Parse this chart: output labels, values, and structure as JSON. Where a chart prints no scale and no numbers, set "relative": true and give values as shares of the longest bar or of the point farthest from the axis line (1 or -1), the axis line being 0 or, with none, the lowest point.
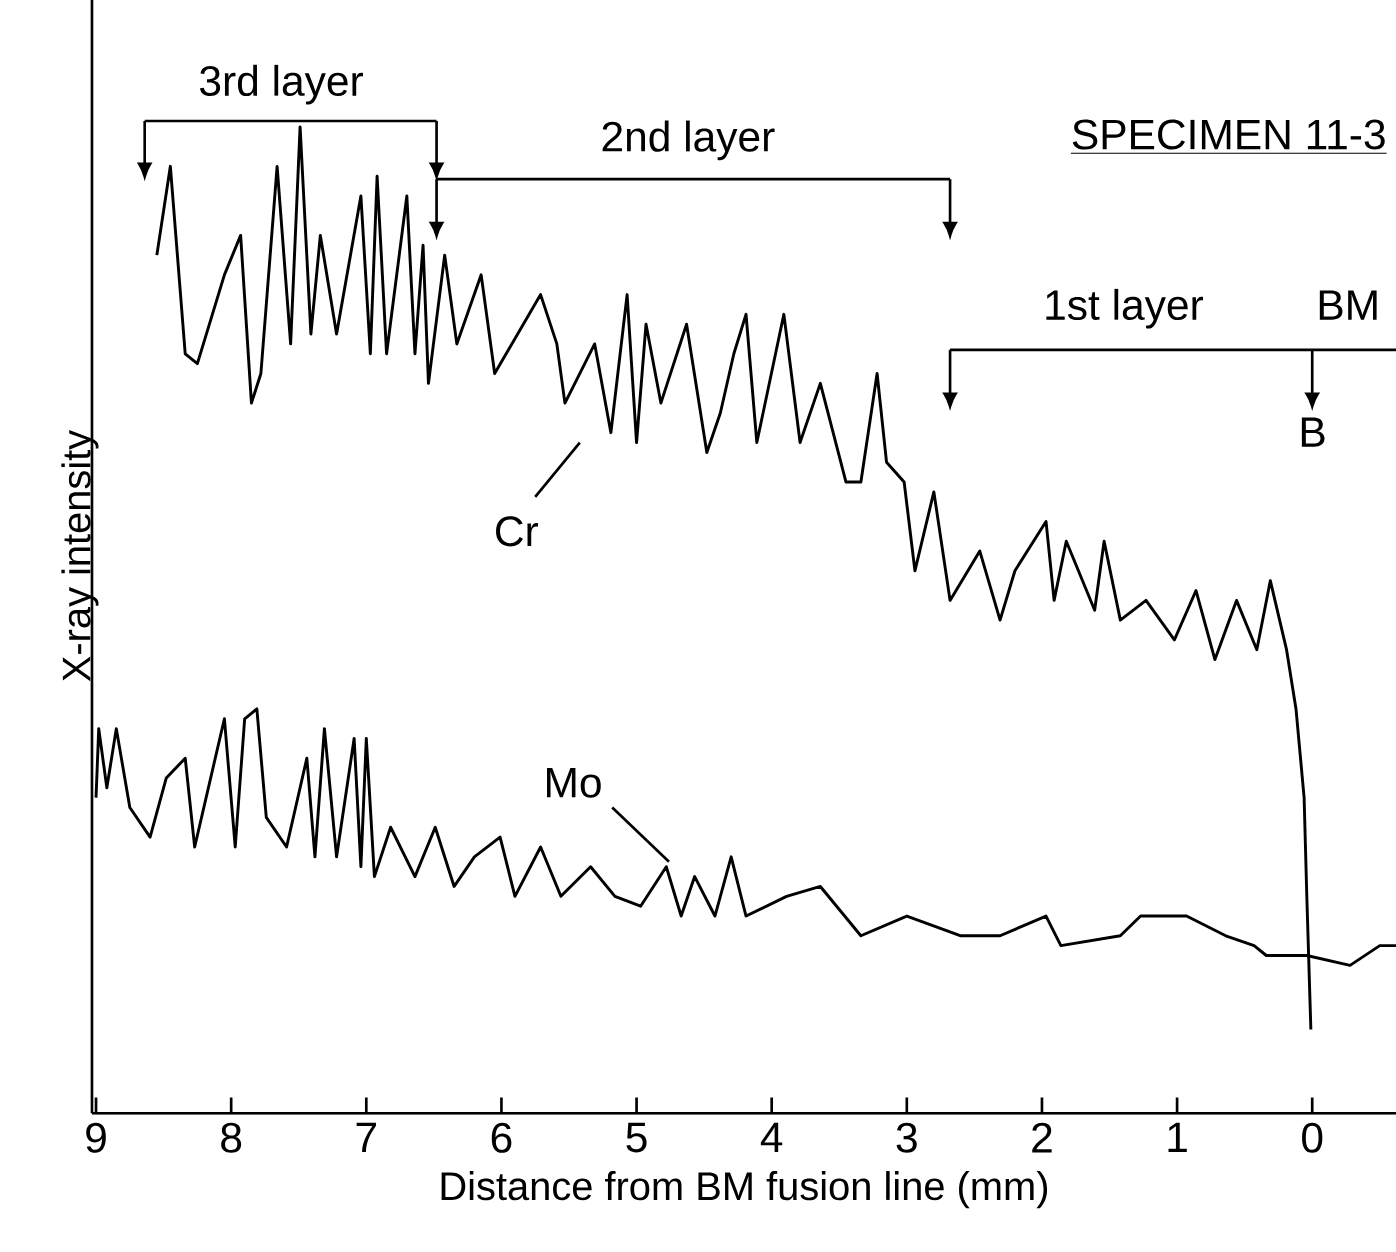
{
  "chart_data": {
    "type": "line",
    "relative": true,
    "xlabel": "Distance from BM fusion line (mm)",
    "ylabel": "X-ray intensity",
    "xlim": [
      9.03,
      -0.62
    ],
    "xticks": [
      9,
      8,
      7,
      6,
      5,
      4,
      3,
      2,
      1,
      0
    ],
    "grid": false,
    "marker": "none",
    "line_style": "solid",
    "series": [
      {
        "name": "Cr",
        "color": "#000000",
        "x": [
          8.55,
          8.45,
          8.34,
          8.25,
          8.05,
          7.93,
          7.85,
          7.78,
          7.66,
          7.56,
          7.49,
          7.41,
          7.34,
          7.22,
          7.04,
          6.97,
          6.92,
          6.85,
          6.7,
          6.64,
          6.58,
          6.54,
          6.42,
          6.33,
          6.15,
          6.05,
          5.71,
          5.59,
          5.53,
          5.31,
          5.19,
          5.07,
          5.0,
          4.93,
          4.82,
          4.63,
          4.48,
          4.38,
          4.28,
          4.19,
          4.11,
          3.91,
          3.79,
          3.64,
          3.45,
          3.34,
          3.22,
          3.15,
          3.02,
          2.94,
          2.8,
          2.68,
          2.46,
          2.31,
          2.2,
          1.97,
          1.91,
          1.82,
          1.61,
          1.54,
          1.42,
          1.23,
          1.02,
          0.86,
          0.72,
          0.56,
          0.41,
          0.31,
          0.19,
          0.12,
          0.06,
          0.04,
          0.01
        ],
        "values": [
          0.87,
          0.96,
          0.77,
          0.76,
          0.85,
          0.89,
          0.72,
          0.75,
          0.96,
          0.78,
          1.0,
          0.79,
          0.89,
          0.79,
          0.93,
          0.77,
          0.95,
          0.77,
          0.93,
          0.77,
          0.88,
          0.74,
          0.87,
          0.78,
          0.85,
          0.75,
          0.83,
          0.78,
          0.72,
          0.78,
          0.69,
          0.83,
          0.68,
          0.8,
          0.72,
          0.8,
          0.67,
          0.71,
          0.77,
          0.81,
          0.68,
          0.81,
          0.68,
          0.74,
          0.64,
          0.64,
          0.75,
          0.66,
          0.64,
          0.55,
          0.63,
          0.52,
          0.57,
          0.5,
          0.55,
          0.6,
          0.52,
          0.58,
          0.51,
          0.58,
          0.5,
          0.52,
          0.48,
          0.53,
          0.46,
          0.52,
          0.47,
          0.54,
          0.47,
          0.41,
          0.32,
          0.22,
          0.085
        ]
      },
      {
        "name": "Mo",
        "color": "#000000",
        "x": [
          9.0,
          8.98,
          8.92,
          8.85,
          8.75,
          8.6,
          8.48,
          8.34,
          8.27,
          8.05,
          7.97,
          7.9,
          7.81,
          7.74,
          7.59,
          7.44,
          7.38,
          7.31,
          7.22,
          7.09,
          7.04,
          7.0,
          6.94,
          6.82,
          6.64,
          6.49,
          6.35,
          6.2,
          6.01,
          5.9,
          5.71,
          5.56,
          5.34,
          5.16,
          4.97,
          4.78,
          4.67,
          4.57,
          4.42,
          4.3,
          4.19,
          3.89,
          3.64,
          3.34,
          3.0,
          2.6,
          2.31,
          1.97,
          1.86,
          1.42,
          1.27,
          0.93,
          0.64,
          0.43,
          0.34,
          0.04,
          -0.28,
          -0.5,
          -0.62
        ],
        "values": [
          0.32,
          0.39,
          0.33,
          0.39,
          0.31,
          0.28,
          0.34,
          0.36,
          0.27,
          0.4,
          0.27,
          0.4,
          0.41,
          0.3,
          0.27,
          0.36,
          0.26,
          0.39,
          0.26,
          0.38,
          0.25,
          0.38,
          0.24,
          0.29,
          0.24,
          0.29,
          0.23,
          0.26,
          0.28,
          0.22,
          0.27,
          0.22,
          0.25,
          0.22,
          0.21,
          0.25,
          0.2,
          0.24,
          0.2,
          0.26,
          0.2,
          0.22,
          0.23,
          0.18,
          0.2,
          0.18,
          0.18,
          0.2,
          0.17,
          0.18,
          0.2,
          0.2,
          0.18,
          0.17,
          0.16,
          0.16,
          0.15,
          0.17,
          0.17
        ]
      }
    ],
    "annotations": [
      "3rd layer",
      "2nd layer",
      "1st layer",
      "BM",
      "B",
      "SPECIMEN 11-3"
    ]
  }
}
